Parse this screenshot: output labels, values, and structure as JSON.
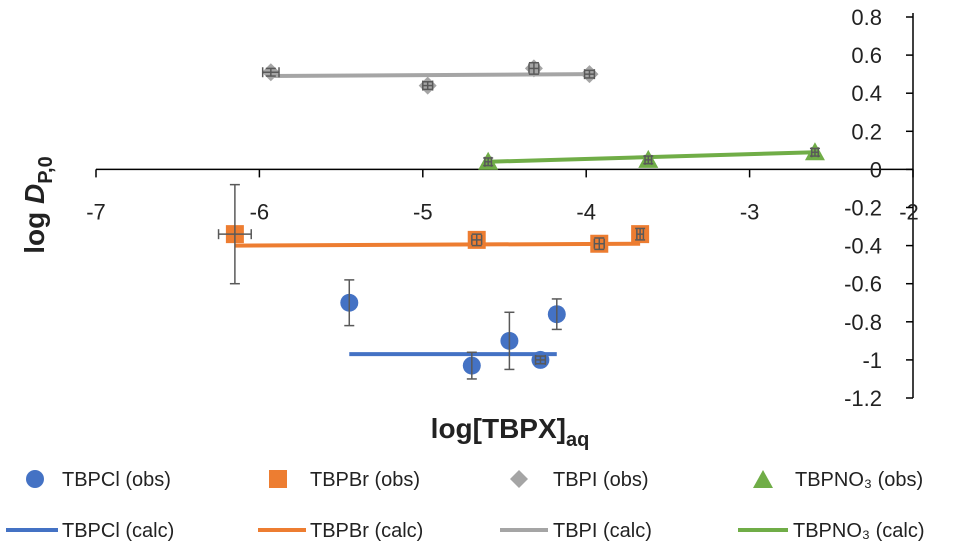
{
  "chart_data": {
    "type": "scatter",
    "xlabel": "log[TBPX]",
    "xlabel_sub": "aq",
    "ylabel": "log ",
    "ylabel_italic": "D",
    "ylabel_sub": "P,0",
    "xlim": [
      -7,
      -2
    ],
    "ylim": [
      -1.2,
      0.8
    ],
    "x_ticks": [
      "-7",
      "-6",
      "-5",
      "-4",
      "-3",
      "-2"
    ],
    "y_ticks": [
      "0.8",
      "0.6",
      "0.4",
      "0.2",
      "0",
      "-0.2",
      "-0.4",
      "-0.6",
      "-0.8",
      "-1",
      "-1.2"
    ],
    "grid": false,
    "legend_position": "bottom",
    "series": [
      {
        "name": "TBPCl (obs)",
        "kind": "points",
        "marker": "circle",
        "color": "#4472C4",
        "points": [
          {
            "x": -5.45,
            "y": -0.7,
            "yerr": 0.12,
            "xerr": 0
          },
          {
            "x": -4.7,
            "y": -1.03,
            "yerr": 0.07,
            "xerr": 0
          },
          {
            "x": -4.47,
            "y": -0.9,
            "yerr": 0.15,
            "xerr": 0
          },
          {
            "x": -4.28,
            "y": -1.0,
            "yerr": 0.02,
            "xerr": 0.03
          },
          {
            "x": -4.18,
            "y": -0.76,
            "yerr": 0.08,
            "xerr": 0
          }
        ]
      },
      {
        "name": "TBPBr (obs)",
        "kind": "points",
        "marker": "square",
        "color": "#ED7D31",
        "points": [
          {
            "x": -6.15,
            "y": -0.34,
            "yerr": 0.26,
            "xerr": 0.1
          },
          {
            "x": -4.67,
            "y": -0.37,
            "yerr": 0.03,
            "xerr": 0.03
          },
          {
            "x": -3.92,
            "y": -0.39,
            "yerr": 0.03,
            "xerr": 0.03
          },
          {
            "x": -3.67,
            "y": -0.34,
            "yerr": 0.03,
            "xerr": 0.02
          }
        ]
      },
      {
        "name": "TBPI (obs)",
        "kind": "points",
        "marker": "diamond",
        "color": "#A5A5A5",
        "points": [
          {
            "x": -5.93,
            "y": 0.51,
            "yerr": 0.02,
            "xerr": 0.05
          },
          {
            "x": -4.97,
            "y": 0.44,
            "yerr": 0.02,
            "xerr": 0.03
          },
          {
            "x": -4.32,
            "y": 0.53,
            "yerr": 0.03,
            "xerr": 0.03
          },
          {
            "x": -3.98,
            "y": 0.5,
            "yerr": 0.02,
            "xerr": 0.03
          }
        ]
      },
      {
        "name": "TBPNO₃ (obs)",
        "kind": "points",
        "marker": "triangle",
        "color": "#70AD47",
        "points": [
          {
            "x": -4.6,
            "y": 0.04,
            "yerr": 0.02,
            "xerr": 0.02
          },
          {
            "x": -3.62,
            "y": 0.05,
            "yerr": 0.02,
            "xerr": 0.02
          },
          {
            "x": -2.6,
            "y": 0.09,
            "yerr": 0.02,
            "xerr": 0.02
          }
        ]
      },
      {
        "name": "TBPCl (calc)",
        "kind": "line",
        "color": "#4472C4",
        "x": [
          -5.45,
          -4.18
        ],
        "y": [
          -0.97,
          -0.97
        ]
      },
      {
        "name": "TBPBr (calc)",
        "kind": "line",
        "color": "#ED7D31",
        "x": [
          -6.15,
          -3.67
        ],
        "y": [
          -0.4,
          -0.39
        ]
      },
      {
        "name": "TBPI (calc)",
        "kind": "line",
        "color": "#A5A5A5",
        "x": [
          -5.93,
          -3.98
        ],
        "y": [
          0.49,
          0.5
        ]
      },
      {
        "name": "TBPNO₃ (calc)",
        "kind": "line",
        "color": "#70AD47",
        "x": [
          -4.6,
          -2.6
        ],
        "y": [
          0.04,
          0.09
        ]
      }
    ]
  }
}
